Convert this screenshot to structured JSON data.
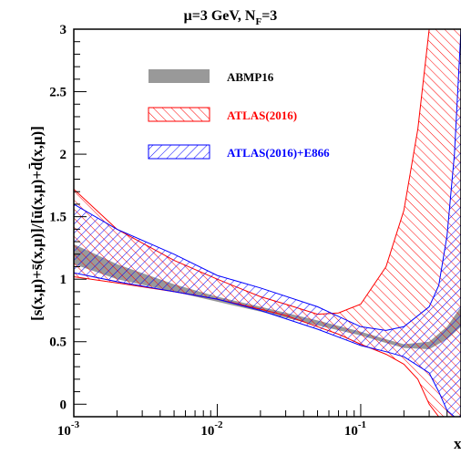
{
  "chart_data": {
    "type": "area",
    "title": "μ=3 GeV, N",
    "title_sub": "F",
    "title_tail": "=3",
    "xlabel": "x",
    "ylabel": "[s(x,μ)+s̄(x,μ)]/[ū(x,μ)+d̄(x,μ)]",
    "xscale": "log",
    "xlim": [
      0.001,
      0.5
    ],
    "ylim": [
      -0.1,
      3.0
    ],
    "x_ticks": [
      {
        "base": "10",
        "exp": "-3",
        "value": 0.001
      },
      {
        "base": "10",
        "exp": "-2",
        "value": 0.01
      },
      {
        "base": "10",
        "exp": "-1",
        "value": 0.1
      }
    ],
    "y_ticks": [
      {
        "label": "0",
        "value": 0
      },
      {
        "label": "0.5",
        "value": 0.5
      },
      {
        "label": "1",
        "value": 1
      },
      {
        "label": "1.5",
        "value": 1.5
      },
      {
        "label": "2",
        "value": 2
      },
      {
        "label": "2.5",
        "value": 2.5
      },
      {
        "label": "3",
        "value": 3
      }
    ],
    "legend_position": "top-center",
    "grid": false,
    "series": [
      {
        "name": "ABMP16",
        "color": "#999999",
        "style": "solid",
        "x": [
          0.001,
          0.002,
          0.005,
          0.01,
          0.02,
          0.05,
          0.1,
          0.15,
          0.2,
          0.3,
          0.4,
          0.5
        ],
        "lower": [
          1.12,
          1.0,
          0.9,
          0.82,
          0.74,
          0.63,
          0.55,
          0.49,
          0.45,
          0.44,
          0.52,
          0.62
        ],
        "upper": [
          1.28,
          1.12,
          0.96,
          0.86,
          0.78,
          0.67,
          0.58,
          0.52,
          0.48,
          0.5,
          0.62,
          0.78
        ]
      },
      {
        "name": "ATLAS(2016)",
        "color": "#ff0000",
        "style": "hatch",
        "x": [
          0.001,
          0.002,
          0.005,
          0.01,
          0.02,
          0.03,
          0.05,
          0.07,
          0.1,
          0.15,
          0.2,
          0.25,
          0.3,
          0.35,
          0.4,
          0.5
        ],
        "lower": [
          1.02,
          0.97,
          0.9,
          0.84,
          0.76,
          0.71,
          0.62,
          0.56,
          0.48,
          0.4,
          0.32,
          0.2,
          0.0,
          -0.1,
          -0.1,
          -0.1
        ],
        "upper": [
          1.72,
          1.4,
          1.15,
          1.0,
          0.86,
          0.8,
          0.72,
          0.73,
          0.8,
          1.1,
          1.55,
          2.2,
          3.0,
          3.0,
          3.0,
          3.0
        ]
      },
      {
        "name": "ATLAS(2016)+E866",
        "color": "#0000ff",
        "style": "hatch",
        "x": [
          0.001,
          0.002,
          0.005,
          0.01,
          0.02,
          0.05,
          0.1,
          0.15,
          0.2,
          0.3,
          0.35,
          0.4,
          0.45,
          0.5
        ],
        "lower": [
          1.05,
          0.98,
          0.9,
          0.84,
          0.75,
          0.6,
          0.47,
          0.42,
          0.38,
          0.25,
          0.1,
          -0.05,
          -0.1,
          -0.1
        ],
        "upper": [
          1.6,
          1.4,
          1.2,
          1.03,
          0.93,
          0.78,
          0.62,
          0.59,
          0.62,
          0.78,
          0.95,
          1.35,
          2.0,
          3.0
        ]
      }
    ]
  }
}
